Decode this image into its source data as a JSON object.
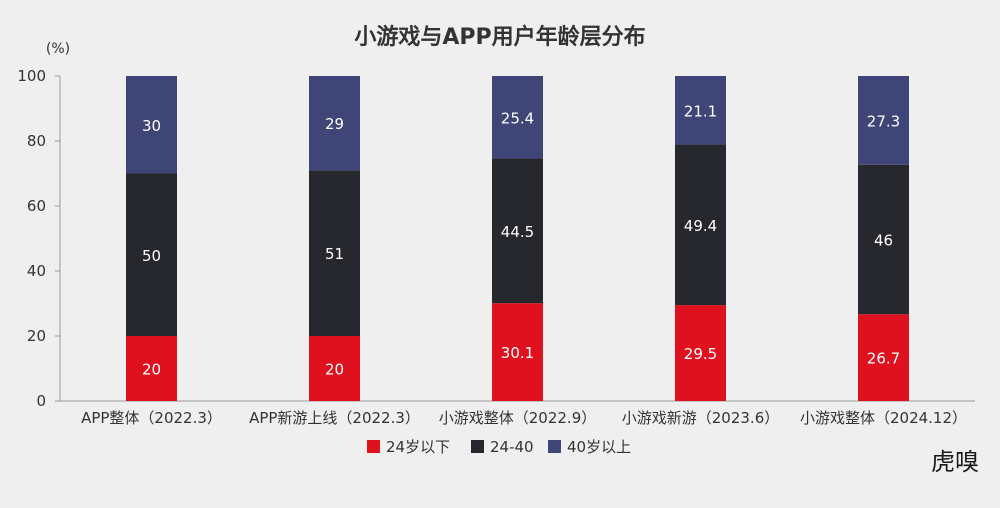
{
  "chart_data": {
    "type": "bar",
    "stacked": true,
    "title": "小游戏与APP用户年龄层分布",
    "unit": "(%)",
    "categories": [
      "APP整体（2022.3）",
      "APP新游上线（2022.3）",
      "小游戏整体（2022.9）",
      "小游戏新游（2023.6）",
      "小游戏整体（2024.12）"
    ],
    "series": [
      {
        "name": "24岁以下",
        "color": "#e0111f",
        "values": [
          20,
          20,
          30.1,
          29.5,
          26.7
        ],
        "labels": [
          "20",
          "20",
          "30.1",
          "29.5",
          "26.7"
        ]
      },
      {
        "name": "24-40",
        "color": "#27282d",
        "values": [
          50,
          51,
          44.5,
          49.4,
          46
        ],
        "labels": [
          "50",
          "51",
          "44.5",
          "49.4",
          "46"
        ]
      },
      {
        "name": "40岁以上",
        "color": "#3f4677",
        "values": [
          30,
          29,
          25.4,
          21.1,
          27.3
        ],
        "labels": [
          "30",
          "29",
          "25.4",
          "21.1",
          "27.3"
        ]
      }
    ],
    "yticks": [
      "0",
      "20",
      "40",
      "60",
      "80",
      "100"
    ],
    "ylim": [
      0,
      100
    ],
    "legend_position": "bottom",
    "grid": false
  },
  "watermark": "虎嗅"
}
